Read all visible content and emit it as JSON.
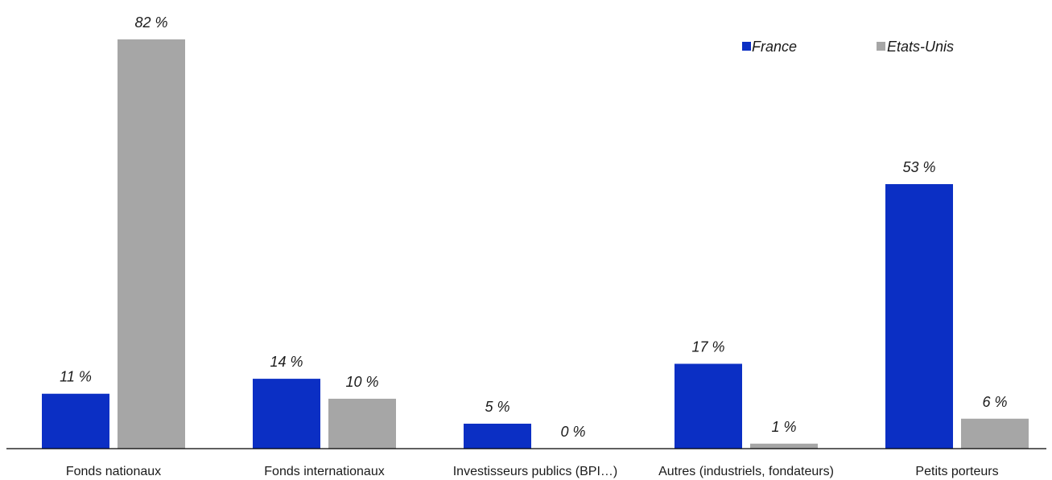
{
  "chart_data": {
    "type": "bar",
    "categories": [
      "Fonds nationaux",
      "Fonds internationaux",
      "Investisseurs publics (BPI…)",
      "Autres (industriels, fondateurs)",
      "Petits porteurs"
    ],
    "series": [
      {
        "name": "France",
        "color": "#0B2FC4",
        "values": [
          11,
          14,
          5,
          17,
          53
        ],
        "labels": [
          "11 %",
          "14 %",
          "5 %",
          "17 %",
          "53 %"
        ]
      },
      {
        "name": "Etats-Unis",
        "color": "#A6A6A6",
        "values": [
          82,
          10,
          0,
          1,
          6
        ],
        "labels": [
          "82 %",
          "10 %",
          "0 %",
          "1 %",
          "6 %"
        ]
      }
    ],
    "title": "",
    "xlabel": "",
    "ylabel": "",
    "ylim": [
      0,
      82
    ],
    "grid": false,
    "legend_position": "top-right"
  }
}
